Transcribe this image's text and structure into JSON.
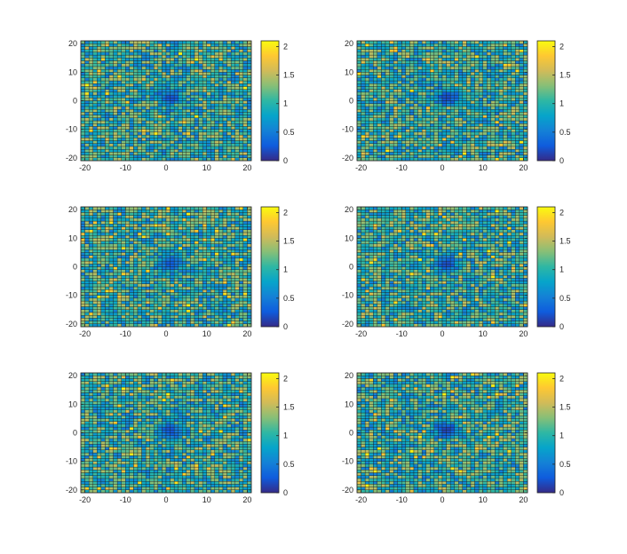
{
  "figure": {
    "colors": {
      "parula": [
        "#352a87",
        "#0f5cdd",
        "#1481d6",
        "#06a4ca",
        "#2eb7a4",
        "#87bf77",
        "#d1bb59",
        "#fec832",
        "#f9fb0e"
      ],
      "cell_edge": "#1a1a1a",
      "axis": "#262626"
    }
  },
  "chart_data": [
    {
      "type": "heatmap",
      "title": "",
      "xlabel": "",
      "ylabel": "",
      "xlim": [
        -21,
        21
      ],
      "ylim": [
        -21,
        21
      ],
      "xticks": [
        -20,
        -10,
        0,
        10,
        20
      ],
      "yticks": [
        -20,
        -10,
        0,
        10,
        20
      ],
      "x_tick_labels": [
        "-20",
        "-10",
        "0",
        "10",
        "20"
      ],
      "y_tick_labels": [
        "-20",
        "-10",
        "0",
        "10",
        "20"
      ],
      "grid_cells": [
        42,
        42
      ],
      "color_range": [
        0,
        2.1
      ],
      "colorbar_ticks": [
        0,
        0.5,
        1,
        1.5,
        2
      ],
      "colorbar_tick_labels": [
        "0",
        "0.5",
        "1",
        "1.5",
        "2"
      ],
      "background_level": 1.0,
      "center": [
        1,
        1
      ],
      "center_min": 0.2
    },
    {
      "type": "heatmap",
      "title": "",
      "xlabel": "",
      "ylabel": "",
      "xlim": [
        -21,
        21
      ],
      "ylim": [
        -21,
        21
      ],
      "xticks": [
        -20,
        -10,
        0,
        10,
        20
      ],
      "yticks": [
        -20,
        -10,
        0,
        10,
        20
      ],
      "x_tick_labels": [
        "-20",
        "-10",
        "0",
        "10",
        "20"
      ],
      "y_tick_labels": [
        "-20",
        "-10",
        "0",
        "10",
        "20"
      ],
      "grid_cells": [
        42,
        42
      ],
      "color_range": [
        0,
        2.1
      ],
      "colorbar_ticks": [
        0,
        0.5,
        1,
        1.5,
        2
      ],
      "colorbar_tick_labels": [
        "0",
        "0.5",
        "1",
        "1.5",
        "2"
      ],
      "background_level": 1.0,
      "center": [
        1,
        1
      ],
      "center_min": 0.15
    },
    {
      "type": "heatmap",
      "title": "",
      "xlabel": "",
      "ylabel": "",
      "xlim": [
        -21,
        21
      ],
      "ylim": [
        -21,
        21
      ],
      "xticks": [
        -20,
        -10,
        0,
        10,
        20
      ],
      "yticks": [
        -20,
        -10,
        0,
        10,
        20
      ],
      "x_tick_labels": [
        "-20",
        "-10",
        "0",
        "10",
        "20"
      ],
      "y_tick_labels": [
        "-20",
        "-10",
        "0",
        "10",
        "20"
      ],
      "grid_cells": [
        42,
        42
      ],
      "color_range": [
        0,
        2.1
      ],
      "colorbar_ticks": [
        0,
        0.5,
        1,
        1.5,
        2
      ],
      "colorbar_tick_labels": [
        "0",
        "0.5",
        "1",
        "1.5",
        "2"
      ],
      "background_level": 1.0,
      "center": [
        1,
        1
      ],
      "center_min": 0.25
    },
    {
      "type": "heatmap",
      "title": "",
      "xlabel": "",
      "ylabel": "",
      "xlim": [
        -21,
        21
      ],
      "ylim": [
        -21,
        21
      ],
      "xticks": [
        -20,
        -10,
        0,
        10,
        20
      ],
      "yticks": [
        -20,
        -10,
        0,
        10,
        20
      ],
      "x_tick_labels": [
        "-20",
        "-10",
        "0",
        "10",
        "20"
      ],
      "y_tick_labels": [
        "-20",
        "-10",
        "0",
        "10",
        "20"
      ],
      "grid_cells": [
        42,
        42
      ],
      "color_range": [
        0,
        2.1
      ],
      "colorbar_ticks": [
        0,
        0.5,
        1,
        1.5,
        2
      ],
      "colorbar_tick_labels": [
        "0",
        "0.5",
        "1",
        "1.5",
        "2"
      ],
      "background_level": 1.0,
      "center": [
        1,
        1
      ],
      "center_min": 0.15
    },
    {
      "type": "heatmap",
      "title": "",
      "xlabel": "",
      "ylabel": "",
      "xlim": [
        -21,
        21
      ],
      "ylim": [
        -21,
        21
      ],
      "xticks": [
        -20,
        -10,
        0,
        10,
        20
      ],
      "yticks": [
        -20,
        -10,
        0,
        10,
        20
      ],
      "x_tick_labels": [
        "-20",
        "-10",
        "0",
        "10",
        "20"
      ],
      "y_tick_labels": [
        "-20",
        "-10",
        "0",
        "10",
        "20"
      ],
      "grid_cells": [
        42,
        42
      ],
      "color_range": [
        0,
        2.1
      ],
      "colorbar_ticks": [
        0,
        0.5,
        1,
        1.5,
        2
      ],
      "colorbar_tick_labels": [
        "0",
        "0.5",
        "1",
        "1.5",
        "2"
      ],
      "background_level": 1.0,
      "center": [
        1,
        1
      ],
      "center_min": 0.2
    },
    {
      "type": "heatmap",
      "title": "",
      "xlabel": "",
      "ylabel": "",
      "xlim": [
        -21,
        21
      ],
      "ylim": [
        -21,
        21
      ],
      "xticks": [
        -20,
        -10,
        0,
        10,
        20
      ],
      "yticks": [
        -20,
        -10,
        0,
        10,
        20
      ],
      "x_tick_labels": [
        "-20",
        "-10",
        "0",
        "10",
        "20"
      ],
      "y_tick_labels": [
        "-20",
        "-10",
        "0",
        "10",
        "20"
      ],
      "grid_cells": [
        42,
        42
      ],
      "color_range": [
        0,
        2.1
      ],
      "colorbar_ticks": [
        0,
        0.5,
        1,
        1.5,
        2
      ],
      "colorbar_tick_labels": [
        "0",
        "0.5",
        "1",
        "1.5",
        "2"
      ],
      "background_level": 1.0,
      "center": [
        1,
        1
      ],
      "center_min": 0.1
    }
  ]
}
